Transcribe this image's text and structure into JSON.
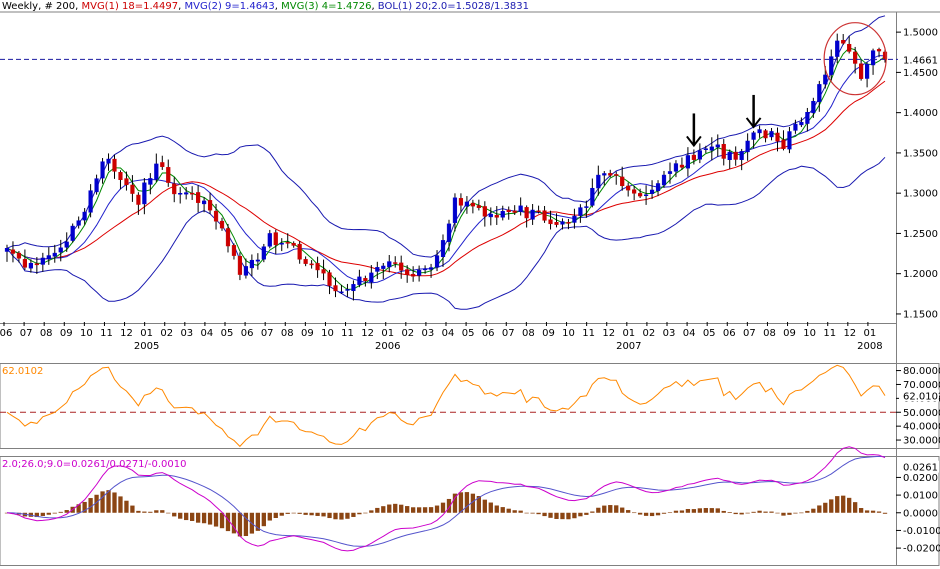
{
  "chart_data": {
    "type": "candlestick",
    "colors": {
      "up": "#0000cc",
      "down": "#cc0000",
      "ma18": "#dd0000",
      "ma9": "#2222cc",
      "ma4": "#008800",
      "bollinger": "#1a1ab0",
      "rsi": "#ff8800",
      "macd": "#cc00cc",
      "signal": "#5555cc",
      "histogram": "#8b4513",
      "annotation": "#cc3333"
    },
    "legend": {
      "period": "Weekly, # 200",
      "ma1": "MVG(1) 18=1.4497",
      "ma2": "MVG(2) 9=1.4643",
      "ma3": "MVG(3) 4=1.4726",
      "bol": "BOL(1) 20;2.0=1.5028/1.3831"
    },
    "price": {
      "ylim": [
        1.14,
        1.525
      ],
      "yticks": [
        "1.1500",
        "1.2000",
        "1.2500",
        "1.3000",
        "1.3500",
        "1.4000",
        "1.4500",
        "1.5000"
      ],
      "last": "1.4661",
      "last_value": 1.4661
    },
    "x_ticks": [
      "06",
      "07",
      "08",
      "09",
      "10",
      "11",
      "12",
      "01",
      "02",
      "03",
      "04",
      "05",
      "06",
      "07",
      "08",
      "09",
      "10",
      "11",
      "12",
      "01",
      "02",
      "03",
      "04",
      "05",
      "06",
      "07",
      "08",
      "09",
      "10",
      "11",
      "12",
      "01",
      "02",
      "03",
      "04",
      "05",
      "06",
      "07",
      "08",
      "09",
      "10",
      "11",
      "12",
      "01"
    ],
    "years": [
      "2005",
      "2006",
      "2007",
      "2008"
    ],
    "anchors": [
      [
        0,
        1.225
      ],
      [
        4,
        1.21
      ],
      [
        6,
        1.22
      ],
      [
        9,
        1.23
      ],
      [
        13,
        1.28
      ],
      [
        15,
        1.32
      ],
      [
        17,
        1.345
      ],
      [
        20,
        1.31
      ],
      [
        22,
        1.29
      ],
      [
        25,
        1.34
      ],
      [
        28,
        1.3
      ],
      [
        31,
        1.3
      ],
      [
        33,
        1.29
      ],
      [
        36,
        1.25
      ],
      [
        39,
        1.2
      ],
      [
        42,
        1.22
      ],
      [
        44,
        1.245
      ],
      [
        48,
        1.23
      ],
      [
        52,
        1.2
      ],
      [
        56,
        1.18
      ],
      [
        59,
        1.19
      ],
      [
        62,
        1.21
      ],
      [
        65,
        1.21
      ],
      [
        68,
        1.195
      ],
      [
        70,
        1.2
      ],
      [
        73,
        1.24
      ],
      [
        75,
        1.29
      ],
      [
        78,
        1.28
      ],
      [
        81,
        1.27
      ],
      [
        85,
        1.28
      ],
      [
        90,
        1.27
      ],
      [
        94,
        1.26
      ],
      [
        97,
        1.29
      ],
      [
        100,
        1.33
      ],
      [
        103,
        1.31
      ],
      [
        106,
        1.3
      ],
      [
        110,
        1.32
      ],
      [
        114,
        1.34
      ],
      [
        118,
        1.36
      ],
      [
        120,
        1.35
      ],
      [
        122,
        1.34
      ],
      [
        126,
        1.38
      ],
      [
        128,
        1.37
      ],
      [
        130,
        1.36
      ],
      [
        133,
        1.395
      ],
      [
        135,
        1.42
      ],
      [
        137,
        1.45
      ],
      [
        139,
        1.49
      ],
      [
        141,
        1.47
      ],
      [
        143,
        1.44
      ],
      [
        145,
        1.47
      ],
      [
        147,
        1.47
      ]
    ],
    "rsi": {
      "label": "62.0102",
      "last_value": 62.0102,
      "ylim": [
        25,
        84
      ],
      "yticks": [
        "30.0000",
        "40.0000",
        "50.0000",
        "60.0000",
        "70.0000",
        "80.0000"
      ],
      "ref_level": 50
    },
    "macd": {
      "legend": "2.0;26.0;9.0=0.0261/0.0271/-0.0010",
      "last": "0.0261",
      "last_value": 0.0261,
      "ylim": [
        -0.029,
        0.031
      ],
      "yticks": [
        "-0.0200",
        "-0.0100",
        "0.0000",
        "0.0100",
        "0.0200"
      ]
    },
    "annotations": {
      "arrows": [
        {
          "x_index": 115
        },
        {
          "x_index": 125
        }
      ],
      "circle": {
        "x_index": 142,
        "price": 1.467
      }
    }
  }
}
